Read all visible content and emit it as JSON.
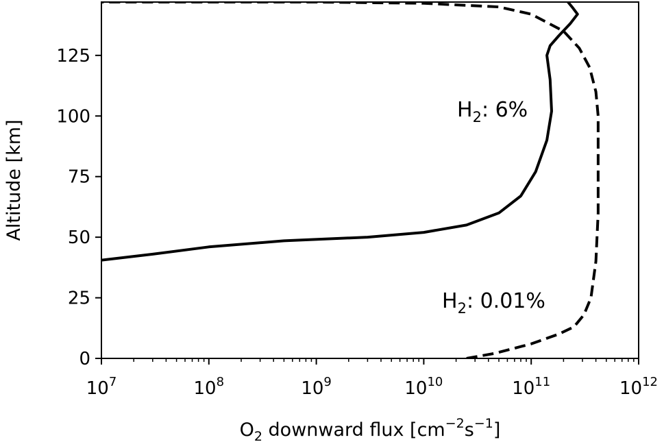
{
  "chart_data": {
    "type": "line",
    "xscale": "log",
    "xlim": [
      10000000,
      1000000000000
    ],
    "ylim": [
      0,
      147
    ],
    "x_ticks": [
      {
        "value": 10000000,
        "base": "10",
        "exp": "7"
      },
      {
        "value": 100000000,
        "base": "10",
        "exp": "8"
      },
      {
        "value": 1000000000,
        "base": "10",
        "exp": "9"
      },
      {
        "value": 10000000000,
        "base": "10",
        "exp": "10"
      },
      {
        "value": 100000000000,
        "base": "10",
        "exp": "11"
      },
      {
        "value": 1000000000000,
        "base": "10",
        "exp": "12"
      }
    ],
    "y_ticks": [
      0,
      25,
      50,
      75,
      100,
      125
    ],
    "xlabel": {
      "pre": "O",
      "sub": "2",
      "mid": " downward flux [cm",
      "sup1": "−2",
      "mid2": "s",
      "sup2": "−1",
      "post": "]"
    },
    "ylabel": "Altitude [km]",
    "grid": false,
    "series": [
      {
        "style": "solid",
        "label": {
          "pre": "H",
          "sub": "2",
          "post": ": 6%"
        },
        "points": [
          [
            10000000,
            40.5
          ],
          [
            30000000,
            43
          ],
          [
            100000000,
            46
          ],
          [
            500000000,
            48.5
          ],
          [
            3000000000,
            50
          ],
          [
            10000000000,
            52
          ],
          [
            25000000000,
            55
          ],
          [
            50000000000,
            60
          ],
          [
            80000000000,
            67
          ],
          [
            110000000000,
            77
          ],
          [
            140000000000,
            90
          ],
          [
            155000000000,
            102
          ],
          [
            150000000000,
            115
          ],
          [
            140000000000,
            125
          ],
          [
            150000000000,
            129
          ],
          [
            180000000000,
            133
          ],
          [
            230000000000,
            138
          ],
          [
            270000000000,
            142
          ],
          [
            240000000000,
            145
          ],
          [
            220000000000,
            147
          ]
        ]
      },
      {
        "style": "dashed",
        "label": {
          "pre": "H",
          "sub": "2",
          "post": ": 0.01%"
        },
        "points": [
          [
            25000000000,
            0
          ],
          [
            45000000000,
            2
          ],
          [
            100000000000,
            6
          ],
          [
            180000000000,
            10
          ],
          [
            250000000000,
            13
          ],
          [
            310000000000,
            18
          ],
          [
            360000000000,
            25
          ],
          [
            400000000000,
            40
          ],
          [
            420000000000,
            60
          ],
          [
            420000000000,
            80
          ],
          [
            420000000000,
            100
          ],
          [
            400000000000,
            110
          ],
          [
            350000000000,
            120
          ],
          [
            280000000000,
            128
          ],
          [
            200000000000,
            135
          ],
          [
            100000000000,
            142
          ],
          [
            50000000000,
            145
          ],
          [
            10000000000,
            146.5
          ],
          [
            1000000000,
            147
          ],
          [
            10000000,
            147
          ]
        ]
      }
    ]
  }
}
